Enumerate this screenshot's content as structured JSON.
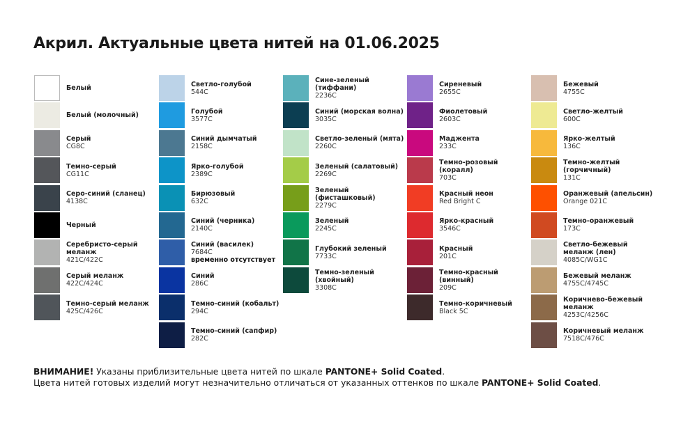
{
  "header": {
    "title": "Акрил. Актуальные цвета нитей на 01.06.2025"
  },
  "columns": [
    [
      {
        "name": "Белый",
        "color": "#ffffff"
      },
      {
        "name": "Белый (молочный)",
        "color": "#ecebe3"
      },
      {
        "name": "Серый",
        "code": "CG8C",
        "color": "#898a8d"
      },
      {
        "name": "Темно-серый",
        "code": "CG11C",
        "color": "#54565a"
      },
      {
        "name": "Серо-синий (сланец)",
        "code": "4138C",
        "color": "#3a434b"
      },
      {
        "name": "Черный",
        "color": "#000000"
      },
      {
        "name": "Серебристо-серый меланж",
        "code": "421C/422C",
        "color": "#b2b3b2"
      },
      {
        "name": "Серый меланж",
        "code": "422C/424C",
        "color": "#6f706f"
      },
      {
        "name": "Темно-серый меланж",
        "code": "425C/426C",
        "color": "#50555a"
      }
    ],
    [
      {
        "name": "Светло-голубой",
        "code": "544C",
        "color": "#bcd3e8"
      },
      {
        "name": "Голубой",
        "code": "3577C",
        "color": "#1f9be0"
      },
      {
        "name": "Синий дымчатый",
        "code": "2158C",
        "color": "#4c7891"
      },
      {
        "name": "Ярко-голубой",
        "code": "2389C",
        "color": "#0d94c8"
      },
      {
        "name": "Бирюзовый",
        "code": "632C",
        "color": "#0a91b5"
      },
      {
        "name": "Синий (черника)",
        "code": "2140C",
        "color": "#236891"
      },
      {
        "name": "Синий (василек)",
        "code": "7684C",
        "note": "временно отсутствует",
        "color": "#2f5ea8"
      },
      {
        "name": "Синий",
        "code": "286C",
        "color": "#0a34a1"
      },
      {
        "name": "Темно-синий (кобальт)",
        "code": "294C",
        "color": "#0b2f6b"
      },
      {
        "name": "Темно-синий (сапфир)",
        "code": "282C",
        "color": "#0e1e45"
      }
    ],
    [
      {
        "name": "Сине-зеленый (тиффани)",
        "code": "2236C",
        "color": "#5bb1bb"
      },
      {
        "name": "Синий (морская волна)",
        "code": "3035C",
        "color": "#0c3e52"
      },
      {
        "name": "Светло-зеленый (мята)",
        "code": "2260C",
        "color": "#c1e3c8"
      },
      {
        "name": "Зеленый (салатовый)",
        "code": "2269C",
        "color": "#a4cc48"
      },
      {
        "name": "Зеленый (фисташковый)",
        "code": "2279C",
        "color": "#779e1a"
      },
      {
        "name": "Зеленый",
        "code": "2245C",
        "color": "#0a9a5c"
      },
      {
        "name": "Глубокий зеленый",
        "code": "7733C",
        "color": "#117448"
      },
      {
        "name": "Темно-зеленый (хвойный)",
        "code": "3308C",
        "color": "#0d4a3c"
      }
    ],
    [
      {
        "name": "Сиреневый",
        "code": "2655C",
        "color": "#9a7ad2"
      },
      {
        "name": "Фиолетовый",
        "code": "2603C",
        "color": "#6f2288"
      },
      {
        "name": "Маджента",
        "code": "233C",
        "color": "#c9097e"
      },
      {
        "name": "Темно-розовый (коралл)",
        "code": "703C",
        "color": "#ba3a4b"
      },
      {
        "name": "Красный неон",
        "code": "Red Bright C",
        "color": "#f13d24"
      },
      {
        "name": "Ярко-красный",
        "code": "3546C",
        "color": "#dd2a2f"
      },
      {
        "name": "Красный",
        "code": "201C",
        "color": "#a8203a"
      },
      {
        "name": "Темно-красный (винный)",
        "code": "209C",
        "color": "#6c2137"
      },
      {
        "name": "Темно-коричневый",
        "code": "Black 5C",
        "color": "#3d2a2b"
      }
    ],
    [
      {
        "name": "Бежевый",
        "code": "4755C",
        "color": "#d8bfb0"
      },
      {
        "name": "Светло-желтый",
        "code": "600C",
        "color": "#eeea93"
      },
      {
        "name": "Ярко-желтый",
        "code": "136C",
        "color": "#f7b93c"
      },
      {
        "name": "Темно-желтый (горчичный)",
        "code": "131C",
        "color": "#c98a10"
      },
      {
        "name": "Оранжевый (апельсин)",
        "code": "Orange 021C",
        "color": "#fe5000"
      },
      {
        "name": "Темно-оранжевый",
        "code": "173C",
        "color": "#d04a21"
      },
      {
        "name": "Светло-бежевый меланж (лен)",
        "code": "4085C/WG1C",
        "color": "#d5d1c8"
      },
      {
        "name": "Бежевый меланж",
        "code": "4755C/4745C",
        "color": "#bc9c72"
      },
      {
        "name": "Коричнево-бежевый меланж",
        "code": "4253C/4256C",
        "color": "#8c6a49"
      },
      {
        "name": "Коричневый меланж",
        "code": "7518C/476C",
        "color": "#6d4e45"
      }
    ]
  ],
  "footer": {
    "warning": "ВНИМАНИЕ!",
    "line1": "Указаны приблизительные цвета нитей по шкале",
    "brand": "PANTONE+ Solid Coated",
    "line2": "Цвета нитей готовых изделий могут незначительно отличаться от указанных оттенков по шкале",
    "end": "."
  }
}
